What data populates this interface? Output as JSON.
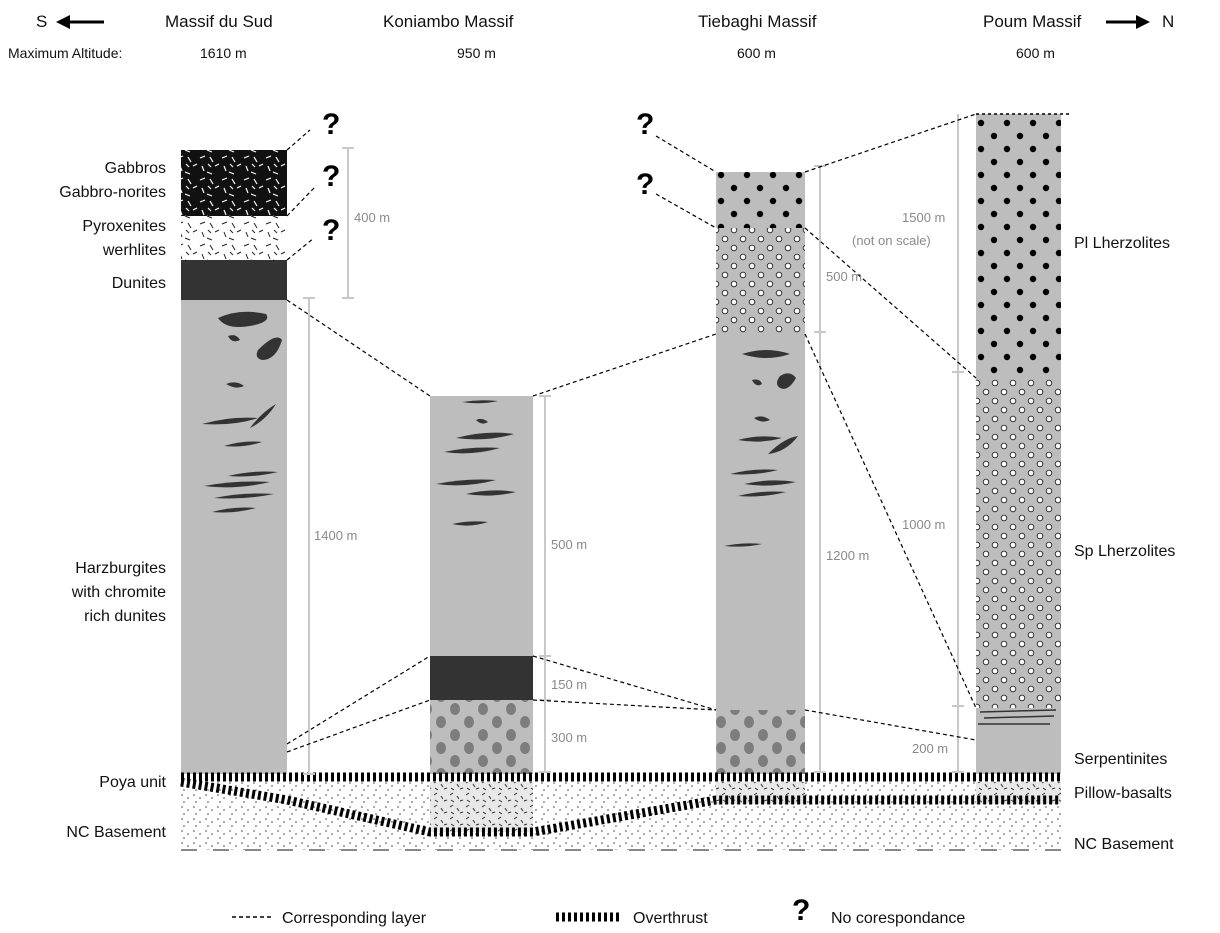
{
  "header": {
    "south_label": "S",
    "north_label": "N",
    "max_altitude_label": "Maximum Altitude:",
    "massifs": [
      {
        "name": "Massif du Sud",
        "altitude": "1610 m"
      },
      {
        "name": "Koniambo Massif",
        "altitude": "950 m"
      },
      {
        "name": "Tiebaghi Massif",
        "altitude": "600 m"
      },
      {
        "name": "Poum Massif",
        "altitude": "600 m"
      }
    ]
  },
  "left_labels": {
    "gabbros": "Gabbros",
    "gabbro_norites": "Gabbro-norites",
    "pyroxenites": "Pyroxenites",
    "werhlites": "werhlites",
    "dunites": "Dunites",
    "harz1": "Harzburgites",
    "harz2": "with chromite",
    "harz3": "rich dunites",
    "poya": "Poya unit",
    "nc_basement": "NC Basement"
  },
  "right_labels": {
    "pl_lherzolites": "Pl Lherzolites",
    "sp_lherzolites": "Sp Lherzolites",
    "serpentinites": "Serpentinites",
    "pillow_basalts": "Pillow-basalts",
    "nc_basement": "NC Basement"
  },
  "thickness_labels": {
    "sud_crust": "400 m",
    "sud_mantle": "1400 m",
    "kon_harz": "500 m",
    "kon_dunite": "150 m",
    "kon_lower": "300 m",
    "tie_upper": "500 m",
    "tie_harz": "1200 m",
    "poum_pl_1": "1500 m",
    "poum_pl_2": "(not on scale)",
    "poum_sp": "1000 m",
    "poum_serp": "200 m"
  },
  "question_mark": "?",
  "legend": {
    "corresponding": "Corresponding layer",
    "overthrust": "Overthrust",
    "no_correspondance": "No corespondance"
  }
}
